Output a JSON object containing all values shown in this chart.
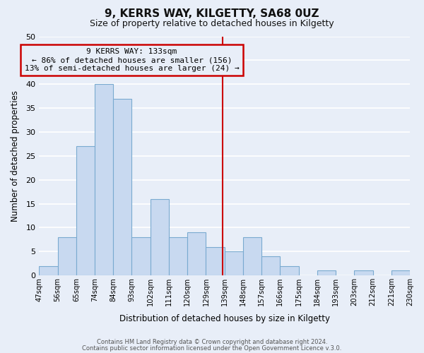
{
  "title": "9, KERRS WAY, KILGETTY, SA68 0UZ",
  "subtitle": "Size of property relative to detached houses in Kilgetty",
  "xlabel": "Distribution of detached houses by size in Kilgetty",
  "ylabel": "Number of detached properties",
  "bar_color": "#c8d9f0",
  "bar_edge_color": "#7aaad0",
  "bin_labels": [
    "47sqm",
    "56sqm",
    "65sqm",
    "74sqm",
    "84sqm",
    "93sqm",
    "102sqm",
    "111sqm",
    "120sqm",
    "129sqm",
    "139sqm",
    "148sqm",
    "157sqm",
    "166sqm",
    "175sqm",
    "184sqm",
    "193sqm",
    "203sqm",
    "212sqm",
    "221sqm",
    "230sqm"
  ],
  "values": [
    2,
    8,
    27,
    40,
    37,
    8,
    16,
    8,
    9,
    6,
    5,
    8,
    4,
    2,
    0,
    1,
    0,
    1,
    0,
    1
  ],
  "ylim": [
    0,
    50
  ],
  "yticks": [
    0,
    5,
    10,
    15,
    20,
    25,
    30,
    35,
    40,
    45,
    50
  ],
  "annotation_title": "9 KERRS WAY: 133sqm",
  "annotation_line1": "← 86% of detached houses are smaller (156)",
  "annotation_line2": "13% of semi-detached houses are larger (24) →",
  "line_color": "#cc0000",
  "footer1": "Contains HM Land Registry data © Crown copyright and database right 2024.",
  "footer2": "Contains public sector information licensed under the Open Government Licence v.3.0.",
  "background_color": "#e8eef8",
  "grid_color": "#ffffff"
}
